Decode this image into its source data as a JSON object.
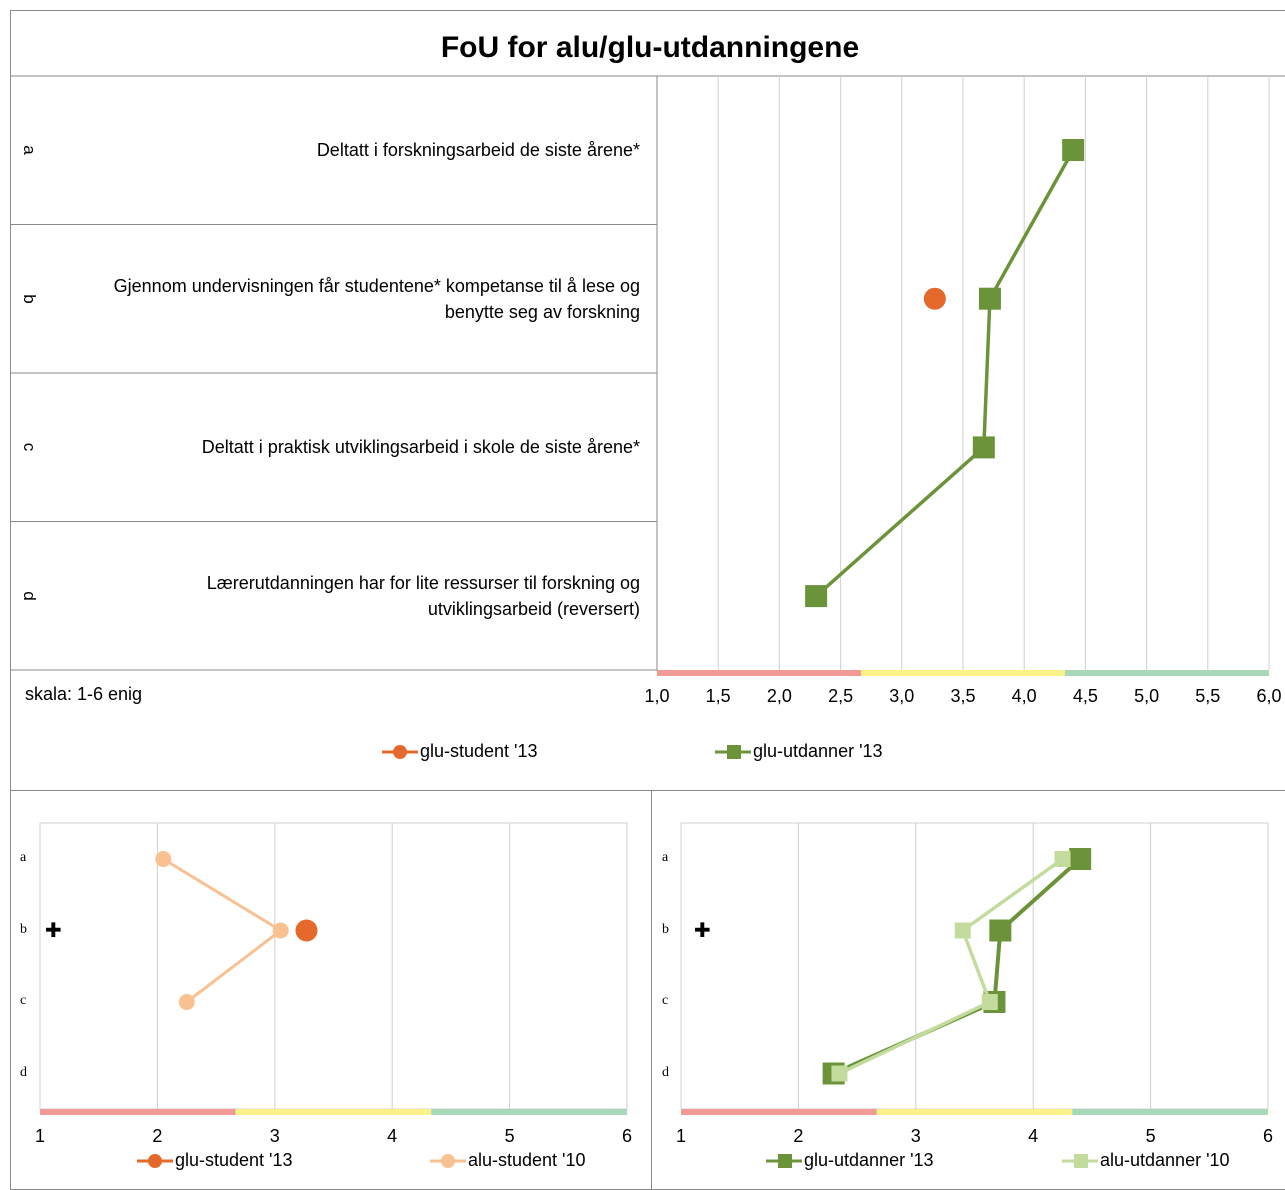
{
  "title": "FoU for alu/glu-utdanningene",
  "scale_note": "skala: 1-6 enig",
  "colors": {
    "glu_student": "#e4692a",
    "alu_student": "#f9c191",
    "glu_utdanner": "#6b943a",
    "alu_utdanner": "#c3dc9e",
    "band_red": "#f19a96",
    "band_yellow": "#fcf28a",
    "band_green": "#a9d8b8",
    "grid": "#cfcfcf"
  },
  "rows": [
    {
      "letter": "a",
      "label_lines": [
        "Deltatt i forskningsarbeid de siste årene*"
      ]
    },
    {
      "letter": "b",
      "label_lines": [
        "Gjennom undervisningen får studentene* kompetanse til å lese og",
        "benytte seg av forskning"
      ]
    },
    {
      "letter": "c",
      "label_lines": [
        "Deltatt i praktisk utviklingsarbeid i skole de siste årene*"
      ]
    },
    {
      "letter": "d",
      "label_lines": [
        "Lærerutdanningen har for lite ressurser til forskning og",
        "utviklingsarbeid (reversert)"
      ]
    }
  ],
  "chart_data": [
    {
      "type": "line",
      "title": "FoU for alu/glu-utdanningene",
      "categories": [
        "a",
        "b",
        "c",
        "d"
      ],
      "x_ticks": [
        "1,0",
        "1,5",
        "2,0",
        "2,5",
        "3,0",
        "3,5",
        "4,0",
        "4,5",
        "5,0",
        "5,5",
        "6,0"
      ],
      "xlim": [
        1,
        6
      ],
      "grid": true,
      "legend": "bottom",
      "series": [
        {
          "name": "glu-student '13",
          "marker": "circle",
          "values": [
            null,
            3.27,
            null,
            null
          ]
        },
        {
          "name": "glu-utdanner '13",
          "marker": "square",
          "values": [
            4.4,
            3.72,
            3.67,
            2.3
          ]
        }
      ]
    },
    {
      "type": "line",
      "categories": [
        "a",
        "b",
        "c",
        "d"
      ],
      "x_ticks": [
        "1",
        "2",
        "3",
        "4",
        "5",
        "6"
      ],
      "xlim": [
        1,
        6
      ],
      "grid": true,
      "legend": "bottom",
      "series": [
        {
          "name": "glu-student '13",
          "marker": "circle",
          "values": [
            null,
            3.27,
            null,
            null
          ]
        },
        {
          "name": "alu-student '10",
          "marker": "circle",
          "values": [
            2.05,
            3.05,
            2.25,
            null
          ]
        }
      ]
    },
    {
      "type": "line",
      "categories": [
        "a",
        "b",
        "c",
        "d"
      ],
      "x_ticks": [
        "1",
        "2",
        "3",
        "4",
        "5",
        "6"
      ],
      "xlim": [
        1,
        6
      ],
      "grid": true,
      "legend": "bottom",
      "series": [
        {
          "name": "glu-utdanner '13",
          "marker": "square",
          "values": [
            4.4,
            3.72,
            3.67,
            2.3
          ]
        },
        {
          "name": "alu-utdanner '10",
          "marker": "square",
          "values": [
            4.25,
            3.4,
            3.63,
            2.35
          ]
        }
      ]
    }
  ]
}
